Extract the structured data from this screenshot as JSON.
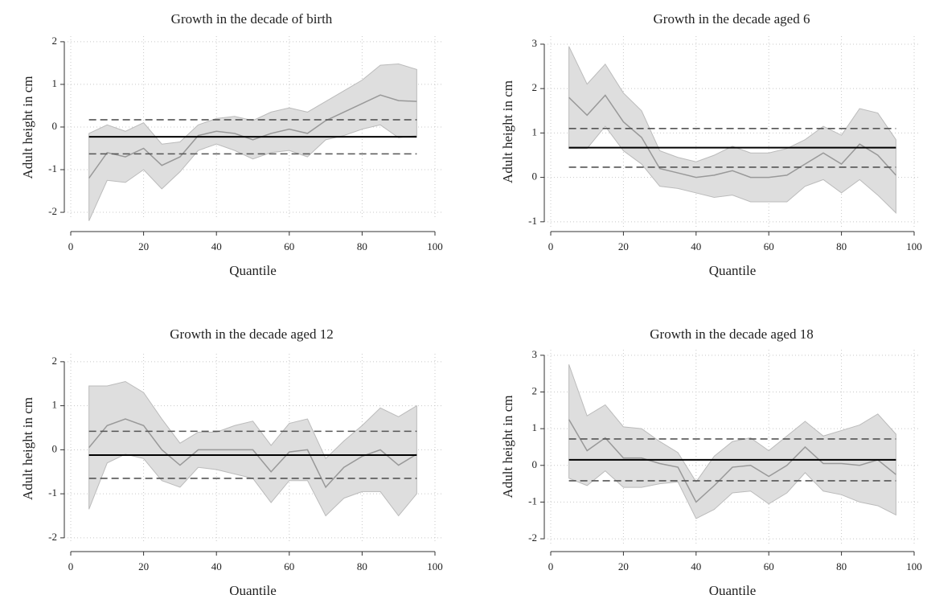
{
  "chart_data": [
    {
      "type": "line",
      "title": "Growth in the decade of birth",
      "xlabel": "Quantile",
      "ylabel": "Adult height in cm",
      "x": [
        5,
        10,
        15,
        20,
        25,
        30,
        35,
        40,
        45,
        50,
        55,
        60,
        65,
        70,
        75,
        80,
        85,
        90,
        95
      ],
      "series": [
        {
          "color": "#999999",
          "values": [
            -1.2,
            -0.6,
            -0.7,
            -0.5,
            -0.9,
            -0.7,
            -0.2,
            -0.1,
            -0.15,
            -0.3,
            -0.15,
            -0.05,
            -0.15,
            0.15,
            0.35,
            0.55,
            0.75,
            0.62,
            0.6
          ]
        }
      ],
      "band": {
        "color": "#dedede",
        "upper": [
          -0.15,
          0.05,
          -0.1,
          0.1,
          -0.4,
          -0.35,
          0.05,
          0.2,
          0.25,
          0.15,
          0.35,
          0.45,
          0.35,
          0.6,
          0.85,
          1.1,
          1.45,
          1.48,
          1.35
        ],
        "lower": [
          -2.2,
          -1.25,
          -1.3,
          -1.0,
          -1.45,
          -1.05,
          -0.55,
          -0.4,
          -0.55,
          -0.75,
          -0.6,
          -0.55,
          -0.7,
          -0.3,
          -0.2,
          -0.05,
          0.05,
          -0.25,
          -0.2
        ]
      },
      "hlines": [
        {
          "value": -0.23,
          "style": "solid",
          "color": "#000000"
        },
        {
          "value": 0.17,
          "style": "dashed",
          "color": "#555555"
        },
        {
          "value": -0.63,
          "style": "dashed",
          "color": "#555555"
        }
      ],
      "xlim": [
        0,
        100
      ],
      "xticks": [
        0,
        20,
        40,
        60,
        80,
        100
      ],
      "ylim": [
        -2.15,
        2.13
      ],
      "yticks": [
        -2,
        -1,
        0,
        1,
        2
      ],
      "grid": true
    },
    {
      "type": "line",
      "title": "Growth in the decade aged 6",
      "xlabel": "Quantile",
      "ylabel": "Adult height in cm",
      "x": [
        5,
        10,
        15,
        20,
        25,
        30,
        35,
        40,
        45,
        50,
        55,
        60,
        65,
        70,
        75,
        80,
        85,
        90,
        95
      ],
      "series": [
        {
          "color": "#999999",
          "values": [
            1.8,
            1.4,
            1.85,
            1.25,
            0.9,
            0.2,
            0.1,
            0.0,
            0.05,
            0.15,
            0.0,
            0.0,
            0.05,
            0.3,
            0.55,
            0.3,
            0.75,
            0.5,
            0.05
          ]
        }
      ],
      "band": {
        "color": "#dedede",
        "upper": [
          2.95,
          2.1,
          2.55,
          1.9,
          1.5,
          0.6,
          0.45,
          0.35,
          0.5,
          0.7,
          0.55,
          0.55,
          0.65,
          0.85,
          1.15,
          0.95,
          1.55,
          1.45,
          0.85
        ],
        "lower": [
          0.65,
          0.65,
          1.15,
          0.6,
          0.3,
          -0.2,
          -0.25,
          -0.35,
          -0.45,
          -0.4,
          -0.55,
          -0.55,
          -0.55,
          -0.2,
          -0.05,
          -0.35,
          -0.05,
          -0.4,
          -0.8
        ]
      },
      "hlines": [
        {
          "value": 0.67,
          "style": "solid",
          "color": "#000000"
        },
        {
          "value": 1.1,
          "style": "dashed",
          "color": "#555555"
        },
        {
          "value": 0.23,
          "style": "dashed",
          "color": "#555555"
        }
      ],
      "xlim": [
        0,
        100
      ],
      "xticks": [
        0,
        20,
        40,
        60,
        80,
        100
      ],
      "ylim": [
        -1.13,
        3.18
      ],
      "yticks": [
        -1,
        0,
        1,
        2,
        3
      ],
      "grid": true
    },
    {
      "type": "line",
      "title": "Growth in the decade aged 12",
      "xlabel": "Quantile",
      "ylabel": "Adult height in cm",
      "x": [
        5,
        10,
        15,
        20,
        25,
        30,
        35,
        40,
        45,
        50,
        55,
        60,
        65,
        70,
        75,
        80,
        85,
        90,
        95
      ],
      "series": [
        {
          "color": "#999999",
          "values": [
            0.05,
            0.55,
            0.7,
            0.55,
            0.0,
            -0.35,
            0.0,
            0.0,
            0.0,
            0.0,
            -0.5,
            -0.05,
            0.0,
            -0.85,
            -0.4,
            -0.15,
            0.0,
            -0.35,
            -0.1
          ]
        }
      ],
      "band": {
        "color": "#dedede",
        "upper": [
          1.45,
          1.45,
          1.55,
          1.3,
          0.7,
          0.15,
          0.4,
          0.4,
          0.55,
          0.65,
          0.1,
          0.6,
          0.7,
          -0.2,
          0.2,
          0.55,
          0.95,
          0.75,
          1.0
        ],
        "lower": [
          -1.35,
          -0.3,
          -0.1,
          -0.2,
          -0.7,
          -0.85,
          -0.4,
          -0.45,
          -0.55,
          -0.65,
          -1.2,
          -0.7,
          -0.7,
          -1.5,
          -1.1,
          -0.95,
          -0.95,
          -1.5,
          -1.0
        ]
      },
      "hlines": [
        {
          "value": -0.12,
          "style": "solid",
          "color": "#000000"
        },
        {
          "value": 0.42,
          "style": "dashed",
          "color": "#555555"
        },
        {
          "value": -0.65,
          "style": "dashed",
          "color": "#555555"
        }
      ],
      "xlim": [
        0,
        100
      ],
      "xticks": [
        0,
        20,
        40,
        60,
        80,
        100
      ],
      "ylim": [
        -2.13,
        2.18
      ],
      "yticks": [
        -2,
        -1,
        0,
        1,
        2
      ],
      "grid": true
    },
    {
      "type": "line",
      "title": "Growth in the decade aged 18",
      "xlabel": "Quantile",
      "ylabel": "Adult height in cm",
      "x": [
        5,
        10,
        15,
        20,
        25,
        30,
        35,
        40,
        45,
        50,
        55,
        60,
        65,
        70,
        75,
        80,
        85,
        90,
        95
      ],
      "series": [
        {
          "color": "#999999",
          "values": [
            1.25,
            0.4,
            0.75,
            0.2,
            0.2,
            0.05,
            -0.05,
            -1.0,
            -0.55,
            -0.05,
            0.0,
            -0.3,
            0.0,
            0.5,
            0.05,
            0.05,
            0.0,
            0.15,
            -0.25
          ]
        }
      ],
      "band": {
        "color": "#dedede",
        "upper": [
          2.75,
          1.35,
          1.65,
          1.05,
          1.0,
          0.65,
          0.35,
          -0.45,
          0.25,
          0.65,
          0.75,
          0.4,
          0.8,
          1.2,
          0.8,
          0.95,
          1.1,
          1.4,
          0.85
        ],
        "lower": [
          -0.35,
          -0.55,
          -0.15,
          -0.6,
          -0.6,
          -0.5,
          -0.45,
          -1.45,
          -1.2,
          -0.75,
          -0.7,
          -1.05,
          -0.75,
          -0.2,
          -0.7,
          -0.8,
          -1.0,
          -1.1,
          -1.35
        ]
      },
      "hlines": [
        {
          "value": 0.15,
          "style": "solid",
          "color": "#000000"
        },
        {
          "value": 0.72,
          "style": "dashed",
          "color": "#555555"
        },
        {
          "value": -0.42,
          "style": "dashed",
          "color": "#555555"
        }
      ],
      "xlim": [
        0,
        100
      ],
      "xticks": [
        0,
        20,
        40,
        60,
        80,
        100
      ],
      "ylim": [
        -2.13,
        3.15
      ],
      "yticks": [
        -2,
        -1,
        0,
        1,
        2,
        3
      ],
      "grid": true
    }
  ]
}
